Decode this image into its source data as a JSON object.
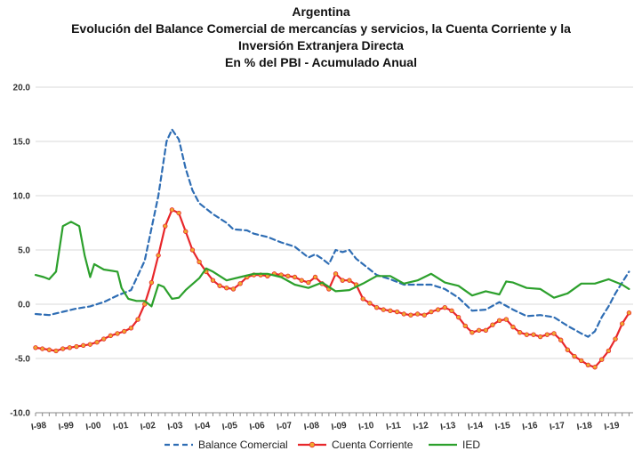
{
  "chart_data": {
    "type": "line",
    "title_lines": [
      "Argentina",
      "Evolución del Balance Comercial de mercancías y servicios,  la Cuenta Corriente  y la",
      "Inversión Extranjera Directa",
      "En % del PBI - Acumulado Anual"
    ],
    "xlabel": "",
    "ylabel": "",
    "x_range": [
      1998.0,
      2019.9
    ],
    "ylim": [
      -10,
      20
    ],
    "y_ticks": [
      "20.0",
      "15.0",
      "10.0",
      "5.0",
      "0.0",
      "-5.0",
      "-10.0"
    ],
    "y_tick_values": [
      20,
      15,
      10,
      5,
      0,
      -5,
      -10
    ],
    "x_tick_labels": [
      "I-98",
      "I-99",
      "I-00",
      "I-01",
      "I-02",
      "I-03",
      "I-04",
      "I-05",
      "I-06",
      "I-07",
      "I-08",
      "I-09",
      "I-10",
      "I-11",
      "I-12",
      "I-13",
      "I-14",
      "I-15",
      "I-16",
      "I-17",
      "I-18",
      "I-19"
    ],
    "x_tick_values": [
      1998,
      1999,
      2000,
      2001,
      2002,
      2003,
      2004,
      2005,
      2006,
      2007,
      2008,
      2009,
      2010,
      2011,
      2012,
      2013,
      2014,
      2015,
      2016,
      2017,
      2018,
      2019
    ],
    "grid": "horizontal",
    "legend_position": "bottom",
    "series": [
      {
        "name": "Balance Comercial",
        "color": "#2e6db4",
        "style": "dashed",
        "points": [
          [
            1998.0,
            -0.9
          ],
          [
            1998.5,
            -1.0
          ],
          [
            1999.0,
            -0.7
          ],
          [
            1999.5,
            -0.4
          ],
          [
            2000.0,
            -0.2
          ],
          [
            2000.5,
            0.2
          ],
          [
            2001.0,
            0.8
          ],
          [
            2001.5,
            1.3
          ],
          [
            2002.0,
            4.0
          ],
          [
            2002.5,
            10.0
          ],
          [
            2002.8,
            15.0
          ],
          [
            2003.0,
            16.1
          ],
          [
            2003.25,
            15.2
          ],
          [
            2003.5,
            12.5
          ],
          [
            2003.75,
            10.5
          ],
          [
            2004.0,
            9.3
          ],
          [
            2004.5,
            8.3
          ],
          [
            2005.0,
            7.5
          ],
          [
            2005.25,
            6.9
          ],
          [
            2005.75,
            6.8
          ],
          [
            2006.0,
            6.5
          ],
          [
            2006.5,
            6.2
          ],
          [
            2007.0,
            5.7
          ],
          [
            2007.5,
            5.3
          ],
          [
            2008.0,
            4.3
          ],
          [
            2008.25,
            4.6
          ],
          [
            2008.5,
            4.2
          ],
          [
            2008.75,
            3.7
          ],
          [
            2009.0,
            5.0
          ],
          [
            2009.25,
            4.8
          ],
          [
            2009.5,
            5.0
          ],
          [
            2009.75,
            4.2
          ],
          [
            2010.0,
            3.7
          ],
          [
            2010.5,
            2.7
          ],
          [
            2011.0,
            2.3
          ],
          [
            2011.5,
            1.8
          ],
          [
            2012.0,
            1.8
          ],
          [
            2012.5,
            1.8
          ],
          [
            2013.0,
            1.4
          ],
          [
            2013.5,
            0.6
          ],
          [
            2014.0,
            -0.6
          ],
          [
            2014.5,
            -0.5
          ],
          [
            2015.0,
            0.2
          ],
          [
            2015.5,
            -0.5
          ],
          [
            2016.0,
            -1.1
          ],
          [
            2016.5,
            -1.0
          ],
          [
            2017.0,
            -1.2
          ],
          [
            2017.5,
            -2.0
          ],
          [
            2018.0,
            -2.7
          ],
          [
            2018.25,
            -3.0
          ],
          [
            2018.5,
            -2.5
          ],
          [
            2018.75,
            -1.2
          ],
          [
            2019.0,
            -0.2
          ],
          [
            2019.25,
            1.0
          ],
          [
            2019.5,
            2.0
          ],
          [
            2019.75,
            3.0
          ]
        ]
      },
      {
        "name": "Cuenta Corriente",
        "color": "#e8272b",
        "style": "solid-markers",
        "marker_color": "#f0a830",
        "points": [
          [
            1998.0,
            -4.0
          ],
          [
            1998.25,
            -4.1
          ],
          [
            1998.5,
            -4.2
          ],
          [
            1998.75,
            -4.3
          ],
          [
            1999.0,
            -4.1
          ],
          [
            1999.25,
            -4.0
          ],
          [
            1999.5,
            -3.9
          ],
          [
            1999.75,
            -3.8
          ],
          [
            2000.0,
            -3.7
          ],
          [
            2000.25,
            -3.5
          ],
          [
            2000.5,
            -3.2
          ],
          [
            2000.75,
            -2.9
          ],
          [
            2001.0,
            -2.7
          ],
          [
            2001.25,
            -2.5
          ],
          [
            2001.5,
            -2.2
          ],
          [
            2001.75,
            -1.4
          ],
          [
            2002.0,
            0.0
          ],
          [
            2002.25,
            2.0
          ],
          [
            2002.5,
            4.5
          ],
          [
            2002.75,
            7.2
          ],
          [
            2003.0,
            8.7
          ],
          [
            2003.25,
            8.4
          ],
          [
            2003.5,
            6.7
          ],
          [
            2003.75,
            5.0
          ],
          [
            2004.0,
            3.9
          ],
          [
            2004.25,
            3.0
          ],
          [
            2004.5,
            2.2
          ],
          [
            2004.75,
            1.7
          ],
          [
            2005.0,
            1.5
          ],
          [
            2005.25,
            1.4
          ],
          [
            2005.5,
            1.9
          ],
          [
            2005.75,
            2.5
          ],
          [
            2006.0,
            2.7
          ],
          [
            2006.25,
            2.7
          ],
          [
            2006.5,
            2.6
          ],
          [
            2006.75,
            2.8
          ],
          [
            2007.0,
            2.7
          ],
          [
            2007.25,
            2.6
          ],
          [
            2007.5,
            2.5
          ],
          [
            2007.75,
            2.2
          ],
          [
            2008.0,
            2.0
          ],
          [
            2008.25,
            2.5
          ],
          [
            2008.5,
            1.9
          ],
          [
            2008.75,
            1.4
          ],
          [
            2009.0,
            2.8
          ],
          [
            2009.25,
            2.2
          ],
          [
            2009.5,
            2.2
          ],
          [
            2009.75,
            1.8
          ],
          [
            2010.0,
            0.5
          ],
          [
            2010.25,
            0.1
          ],
          [
            2010.5,
            -0.3
          ],
          [
            2010.75,
            -0.5
          ],
          [
            2011.0,
            -0.6
          ],
          [
            2011.25,
            -0.7
          ],
          [
            2011.5,
            -0.9
          ],
          [
            2011.75,
            -1.0
          ],
          [
            2012.0,
            -0.9
          ],
          [
            2012.25,
            -1.0
          ],
          [
            2012.5,
            -0.7
          ],
          [
            2012.75,
            -0.5
          ],
          [
            2013.0,
            -0.3
          ],
          [
            2013.25,
            -0.6
          ],
          [
            2013.5,
            -1.2
          ],
          [
            2013.75,
            -2.0
          ],
          [
            2014.0,
            -2.6
          ],
          [
            2014.25,
            -2.4
          ],
          [
            2014.5,
            -2.4
          ],
          [
            2014.75,
            -1.9
          ],
          [
            2015.0,
            -1.5
          ],
          [
            2015.25,
            -1.4
          ],
          [
            2015.5,
            -2.1
          ],
          [
            2015.75,
            -2.6
          ],
          [
            2016.0,
            -2.8
          ],
          [
            2016.25,
            -2.8
          ],
          [
            2016.5,
            -3.0
          ],
          [
            2016.75,
            -2.8
          ],
          [
            2017.0,
            -2.7
          ],
          [
            2017.25,
            -3.3
          ],
          [
            2017.5,
            -4.2
          ],
          [
            2017.75,
            -4.8
          ],
          [
            2018.0,
            -5.2
          ],
          [
            2018.25,
            -5.6
          ],
          [
            2018.5,
            -5.8
          ],
          [
            2018.75,
            -5.1
          ],
          [
            2019.0,
            -4.3
          ],
          [
            2019.25,
            -3.2
          ],
          [
            2019.5,
            -1.8
          ],
          [
            2019.75,
            -0.8
          ]
        ]
      },
      {
        "name": "IED",
        "color": "#2ca02c",
        "style": "solid",
        "points": [
          [
            1998.0,
            2.7
          ],
          [
            1998.3,
            2.5
          ],
          [
            1998.5,
            2.3
          ],
          [
            1998.75,
            3.0
          ],
          [
            1999.0,
            7.2
          ],
          [
            1999.3,
            7.6
          ],
          [
            1999.6,
            7.2
          ],
          [
            1999.8,
            4.5
          ],
          [
            2000.0,
            2.5
          ],
          [
            2000.15,
            3.7
          ],
          [
            2000.5,
            3.2
          ],
          [
            2001.0,
            3.0
          ],
          [
            2001.15,
            1.5
          ],
          [
            2001.4,
            0.5
          ],
          [
            2001.7,
            0.3
          ],
          [
            2002.0,
            0.3
          ],
          [
            2002.25,
            -0.2
          ],
          [
            2002.5,
            1.8
          ],
          [
            2002.7,
            1.6
          ],
          [
            2003.0,
            0.5
          ],
          [
            2003.25,
            0.6
          ],
          [
            2003.5,
            1.3
          ],
          [
            2004.0,
            2.4
          ],
          [
            2004.25,
            3.3
          ],
          [
            2004.5,
            3.0
          ],
          [
            2005.0,
            2.2
          ],
          [
            2005.5,
            2.5
          ],
          [
            2006.0,
            2.8
          ],
          [
            2006.5,
            2.8
          ],
          [
            2007.0,
            2.5
          ],
          [
            2007.5,
            1.8
          ],
          [
            2008.0,
            1.5
          ],
          [
            2008.5,
            2.0
          ],
          [
            2009.0,
            1.2
          ],
          [
            2009.5,
            1.3
          ],
          [
            2010.0,
            1.9
          ],
          [
            2010.5,
            2.6
          ],
          [
            2011.0,
            2.6
          ],
          [
            2011.5,
            1.9
          ],
          [
            2012.0,
            2.2
          ],
          [
            2012.5,
            2.8
          ],
          [
            2013.0,
            2.0
          ],
          [
            2013.5,
            1.7
          ],
          [
            2014.0,
            0.8
          ],
          [
            2014.5,
            1.2
          ],
          [
            2015.0,
            0.9
          ],
          [
            2015.25,
            2.1
          ],
          [
            2015.5,
            2.0
          ],
          [
            2016.0,
            1.5
          ],
          [
            2016.5,
            1.4
          ],
          [
            2017.0,
            0.6
          ],
          [
            2017.5,
            1.0
          ],
          [
            2018.0,
            1.9
          ],
          [
            2018.5,
            1.9
          ],
          [
            2019.0,
            2.3
          ],
          [
            2019.5,
            1.8
          ],
          [
            2019.75,
            1.4
          ]
        ]
      }
    ]
  }
}
